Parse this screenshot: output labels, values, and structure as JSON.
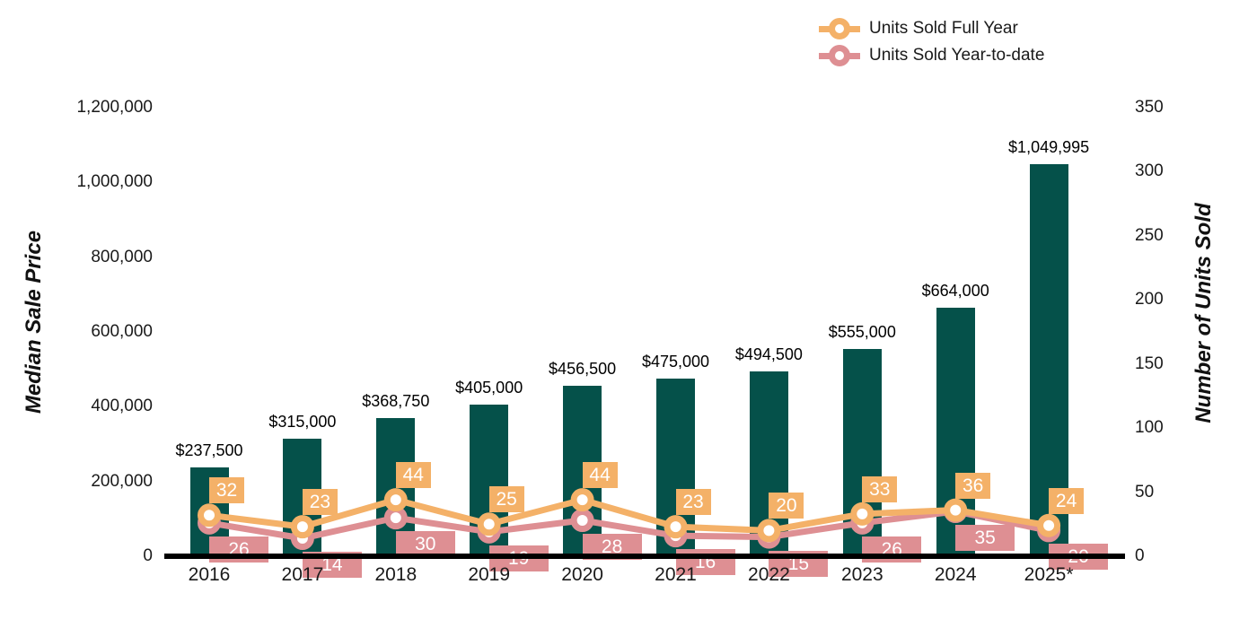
{
  "chart_data": {
    "type": "combo-bar-line",
    "categories": [
      "2016",
      "2017",
      "2018",
      "2019",
      "2020",
      "2021",
      "2022",
      "2023",
      "2024",
      "2025*"
    ],
    "bar_series": {
      "name": "Median Sale Price",
      "axis": "left",
      "color": "#05514A",
      "values": [
        237500,
        315000,
        368750,
        405000,
        456500,
        475000,
        494500,
        555000,
        664000,
        1049995
      ],
      "labels": [
        "$237,500",
        "$315,000",
        "$368,750",
        "$405,000",
        "$456,500",
        "$475,000",
        "$494,500",
        "$555,000",
        "$664,000",
        "$1,049,995"
      ]
    },
    "line_series": [
      {
        "name": "Units Sold Full Year",
        "axis": "right",
        "color": "#F4B168",
        "values": [
          32,
          23,
          44,
          25,
          44,
          23,
          20,
          33,
          36,
          24
        ]
      },
      {
        "name": "Units Sold Year-to-date",
        "axis": "right",
        "color": "#DE8F93",
        "values": [
          26,
          14,
          30,
          19,
          28,
          16,
          15,
          26,
          35,
          20
        ]
      }
    ],
    "left_axis": {
      "title": "Median Sale Price",
      "min": 0,
      "max": 1200000,
      "tick_labels": [
        "0",
        "200,000",
        "400,000",
        "600,000",
        "800,000",
        "1,000,000",
        "1,200,000"
      ]
    },
    "right_axis": {
      "title": "Number of Units Sold",
      "min": 0,
      "max": 350,
      "tick_labels": [
        "0",
        "50",
        "100",
        "150",
        "200",
        "250",
        "300",
        "350"
      ]
    },
    "legend": {
      "position": "top-right",
      "items": [
        {
          "label": "Units Sold Full Year",
          "color": "#F4B168"
        },
        {
          "label": "Units Sold Year-to-date",
          "color": "#DE8F93"
        }
      ]
    },
    "grid": false,
    "background": "#FFFFFF",
    "marker_style": "donut",
    "data_label_text_color": "#FFFFFF"
  }
}
